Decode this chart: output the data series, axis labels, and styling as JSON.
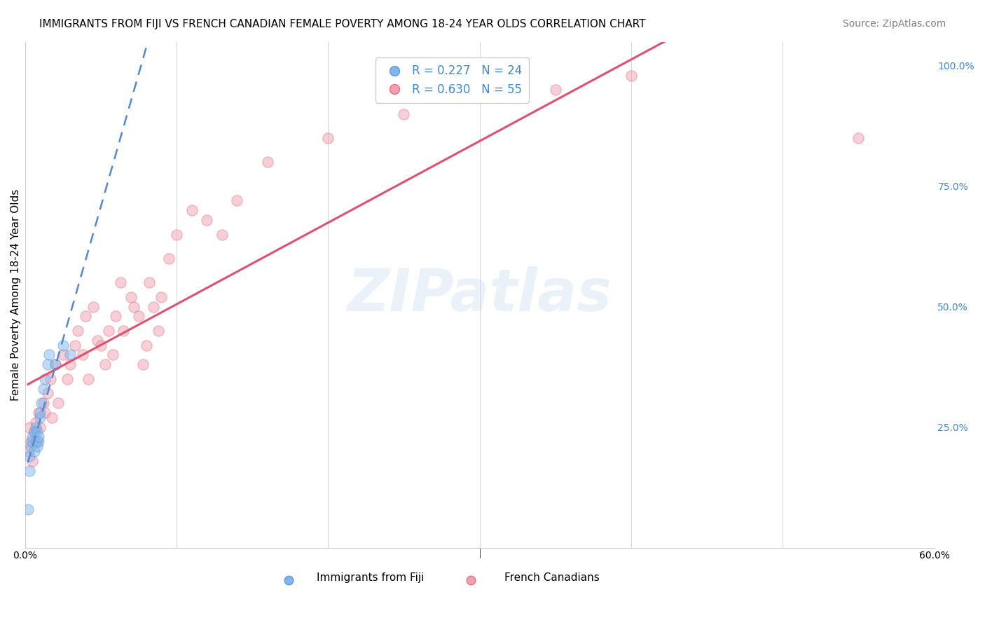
{
  "title": "IMMIGRANTS FROM FIJI VS FRENCH CANADIAN FEMALE POVERTY AMONG 18-24 YEAR OLDS CORRELATION CHART",
  "source": "Source: ZipAtlas.com",
  "xlabel_bottom": "",
  "ylabel": "Female Poverty Among 18-24 Year Olds",
  "xlim": [
    0.0,
    0.6
  ],
  "ylim": [
    0.0,
    1.05
  ],
  "xticks": [
    0.0,
    0.1,
    0.2,
    0.3,
    0.4,
    0.5,
    0.6
  ],
  "xticklabels": [
    "0.0%",
    "",
    "",
    "",
    "",
    "",
    "60.0%"
  ],
  "right_yticks": [
    0.25,
    0.5,
    0.75,
    1.0
  ],
  "right_yticklabels": [
    "25.0%",
    "50.0%",
    "75.0%",
    "100.0%"
  ],
  "legend_entries": [
    {
      "label": "R = 0.227   N = 24",
      "color": "#7eb6f0"
    },
    {
      "label": "R = 0.630   N = 55",
      "color": "#f4a0b0"
    }
  ],
  "fiji_color": "#7eb6f0",
  "fiji_edge_color": "#6699cc",
  "french_color": "#f4a0b0",
  "french_edge_color": "#e07080",
  "fiji_trend_color": "#5588cc",
  "french_trend_color": "#e05070",
  "fiji_trend_style": "--",
  "french_trend_style": "-",
  "watermark": "ZIPatlas",
  "fiji_x": [
    0.002,
    0.003,
    0.003,
    0.004,
    0.005,
    0.005,
    0.006,
    0.006,
    0.007,
    0.007,
    0.008,
    0.008,
    0.009,
    0.009,
    0.01,
    0.01,
    0.011,
    0.012,
    0.013,
    0.015,
    0.016,
    0.02,
    0.025,
    0.03
  ],
  "fiji_y": [
    0.08,
    0.16,
    0.19,
    0.21,
    0.22,
    0.23,
    0.2,
    0.24,
    0.22,
    0.25,
    0.21,
    0.24,
    0.22,
    0.23,
    0.27,
    0.28,
    0.3,
    0.33,
    0.35,
    0.38,
    0.4,
    0.38,
    0.42,
    0.4
  ],
  "french_x": [
    0.002,
    0.003,
    0.004,
    0.005,
    0.006,
    0.007,
    0.008,
    0.009,
    0.01,
    0.012,
    0.013,
    0.015,
    0.017,
    0.018,
    0.02,
    0.022,
    0.025,
    0.028,
    0.03,
    0.033,
    0.035,
    0.038,
    0.04,
    0.042,
    0.045,
    0.048,
    0.05,
    0.053,
    0.055,
    0.058,
    0.06,
    0.063,
    0.065,
    0.07,
    0.072,
    0.075,
    0.078,
    0.08,
    0.082,
    0.085,
    0.088,
    0.09,
    0.095,
    0.1,
    0.11,
    0.12,
    0.13,
    0.14,
    0.16,
    0.2,
    0.25,
    0.3,
    0.35,
    0.4,
    0.55
  ],
  "french_y": [
    0.2,
    0.25,
    0.22,
    0.18,
    0.24,
    0.26,
    0.22,
    0.28,
    0.25,
    0.3,
    0.28,
    0.32,
    0.35,
    0.27,
    0.38,
    0.3,
    0.4,
    0.35,
    0.38,
    0.42,
    0.45,
    0.4,
    0.48,
    0.35,
    0.5,
    0.43,
    0.42,
    0.38,
    0.45,
    0.4,
    0.48,
    0.55,
    0.45,
    0.52,
    0.5,
    0.48,
    0.38,
    0.42,
    0.55,
    0.5,
    0.45,
    0.52,
    0.6,
    0.65,
    0.7,
    0.68,
    0.65,
    0.72,
    0.8,
    0.85,
    0.9,
    0.95,
    0.95,
    0.98,
    0.85
  ],
  "scatter_size": 120,
  "scatter_alpha": 0.5,
  "grid_color": "#cccccc",
  "background_color": "#ffffff",
  "title_fontsize": 11,
  "axis_label_fontsize": 11,
  "tick_fontsize": 10,
  "legend_fontsize": 12,
  "source_fontsize": 10
}
